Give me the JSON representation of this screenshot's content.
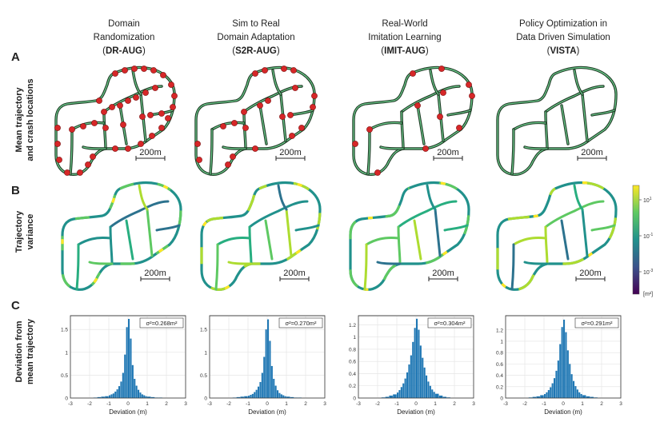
{
  "figure": {
    "columns": [
      {
        "line1": "Domain",
        "line2": "Randomization",
        "open": "(",
        "tag": "DR-AUG",
        "close": ")"
      },
      {
        "line1": "Sim to Real",
        "line2": "Domain Adaptation",
        "open": "(",
        "tag": "S2R-AUG",
        "close": ")"
      },
      {
        "line1": "Real-World",
        "line2": "Imitation Learning",
        "open": "(",
        "tag": "IMIT-AUG",
        "close": ")"
      },
      {
        "line1": "Policy Optimization in",
        "line2": "Data Driven Simulation",
        "open": "(",
        "tag": "VISTA",
        "close": ")"
      }
    ],
    "rows": [
      {
        "letter": "A",
        "line1": "Mean trajectory",
        "line2": "and crash locations"
      },
      {
        "letter": "B",
        "line1": "Trajectory",
        "line2": "variance"
      },
      {
        "letter": "C",
        "line1": "Deviation from",
        "line2": "mean trajectory"
      }
    ],
    "scale_bar": "200m",
    "crash_counts": [
      38,
      22,
      12,
      0
    ],
    "colorbar": {
      "ticks": [
        "10",
        "10",
        "10"
      ],
      "exponents": [
        "1",
        "-1",
        "-3"
      ],
      "unit": "[m²]",
      "colors": [
        "#fde725",
        "#5ec962",
        "#21918c",
        "#3b528b",
        "#440154"
      ]
    },
    "colors": {
      "road_outer": "#1d3a24",
      "road_inner": "#6fcf8f",
      "crash": "#d62728",
      "hist": "#1f77b4"
    }
  },
  "chart_data": [
    {
      "type": "bar",
      "title": "σ²=0.268m²",
      "xlabel": "Deviation (m)",
      "ylabel": "",
      "xlim": [
        -3,
        3
      ],
      "ylim": [
        0,
        1.8
      ],
      "x_ticks": [
        "-3",
        "-2",
        "-1",
        "0",
        "1",
        "2",
        "3"
      ],
      "y_ticks": [
        "0",
        "0.5",
        "1",
        "1.5"
      ],
      "bins": [
        -1.8,
        -1.6,
        -1.4,
        -1.2,
        -1.0,
        -0.9,
        -0.8,
        -0.7,
        -0.6,
        -0.5,
        -0.4,
        -0.3,
        -0.2,
        -0.1,
        0.0,
        0.1,
        0.2,
        0.3,
        0.4,
        0.5,
        0.6,
        0.7,
        0.8,
        0.9,
        1.0,
        1.2,
        1.4,
        1.6
      ],
      "values": [
        0.01,
        0.02,
        0.03,
        0.04,
        0.06,
        0.08,
        0.1,
        0.14,
        0.19,
        0.26,
        0.36,
        0.55,
        0.95,
        1.55,
        1.73,
        1.3,
        0.72,
        0.42,
        0.27,
        0.18,
        0.12,
        0.08,
        0.06,
        0.04,
        0.03,
        0.02,
        0.01,
        0.01
      ]
    },
    {
      "type": "bar",
      "title": "σ²=0.270m²",
      "xlabel": "Deviation (m)",
      "ylabel": "",
      "xlim": [
        -3,
        3
      ],
      "ylim": [
        0,
        1.8
      ],
      "x_ticks": [
        "-3",
        "-2",
        "-1",
        "0",
        "1",
        "2",
        "3"
      ],
      "y_ticks": [
        "0",
        "0.5",
        "1",
        "1.5"
      ],
      "bins": [
        -1.8,
        -1.6,
        -1.4,
        -1.2,
        -1.0,
        -0.9,
        -0.8,
        -0.7,
        -0.6,
        -0.5,
        -0.4,
        -0.3,
        -0.2,
        -0.1,
        0.0,
        0.1,
        0.2,
        0.3,
        0.4,
        0.5,
        0.6,
        0.7,
        0.8,
        0.9,
        1.0,
        1.2,
        1.4,
        1.6
      ],
      "values": [
        0.01,
        0.02,
        0.03,
        0.04,
        0.05,
        0.07,
        0.09,
        0.13,
        0.18,
        0.25,
        0.35,
        0.55,
        0.9,
        1.5,
        1.72,
        1.25,
        0.7,
        0.42,
        0.27,
        0.17,
        0.11,
        0.08,
        0.06,
        0.04,
        0.03,
        0.02,
        0.01,
        0.01
      ]
    },
    {
      "type": "bar",
      "title": "σ²=0.304m²",
      "xlabel": "Deviation (m)",
      "ylabel": "",
      "xlim": [
        -3,
        3
      ],
      "ylim": [
        0,
        1.35
      ],
      "x_ticks": [
        "-3",
        "-2",
        "-1",
        "0",
        "1",
        "2",
        "3"
      ],
      "y_ticks": [
        "0",
        "0.2",
        "0.4",
        "0.6",
        "0.8",
        "1",
        "1.2"
      ],
      "bins": [
        -1.8,
        -1.6,
        -1.4,
        -1.2,
        -1.0,
        -0.9,
        -0.8,
        -0.7,
        -0.6,
        -0.5,
        -0.4,
        -0.3,
        -0.2,
        -0.1,
        0.0,
        0.1,
        0.2,
        0.3,
        0.4,
        0.5,
        0.6,
        0.7,
        0.8,
        0.9,
        1.0,
        1.2,
        1.4,
        1.6
      ],
      "values": [
        0.01,
        0.02,
        0.04,
        0.06,
        0.09,
        0.13,
        0.18,
        0.24,
        0.32,
        0.42,
        0.55,
        0.7,
        0.92,
        1.15,
        1.3,
        1.12,
        0.86,
        0.66,
        0.5,
        0.37,
        0.27,
        0.2,
        0.14,
        0.1,
        0.07,
        0.04,
        0.02,
        0.01
      ]
    },
    {
      "type": "bar",
      "title": "σ²=0.291m²",
      "xlabel": "Deviation (m)",
      "ylabel": "",
      "xlim": [
        -3,
        3
      ],
      "ylim": [
        0,
        1.45
      ],
      "x_ticks": [
        "-3",
        "-2",
        "-1",
        "0",
        "1",
        "2",
        "3"
      ],
      "y_ticks": [
        "0",
        "0.2",
        "0.4",
        "0.6",
        "0.8",
        "1",
        "1.2"
      ],
      "bins": [
        -1.8,
        -1.6,
        -1.4,
        -1.2,
        -1.0,
        -0.9,
        -0.8,
        -0.7,
        -0.6,
        -0.5,
        -0.4,
        -0.3,
        -0.2,
        -0.1,
        0.0,
        0.1,
        0.2,
        0.3,
        0.4,
        0.5,
        0.6,
        0.7,
        0.8,
        0.9,
        1.0,
        1.2,
        1.4,
        1.6
      ],
      "values": [
        0.01,
        0.02,
        0.03,
        0.05,
        0.07,
        0.1,
        0.14,
        0.19,
        0.26,
        0.35,
        0.48,
        0.66,
        0.95,
        1.25,
        1.38,
        1.16,
        0.84,
        0.6,
        0.42,
        0.3,
        0.21,
        0.15,
        0.1,
        0.07,
        0.05,
        0.03,
        0.02,
        0.01
      ]
    }
  ]
}
